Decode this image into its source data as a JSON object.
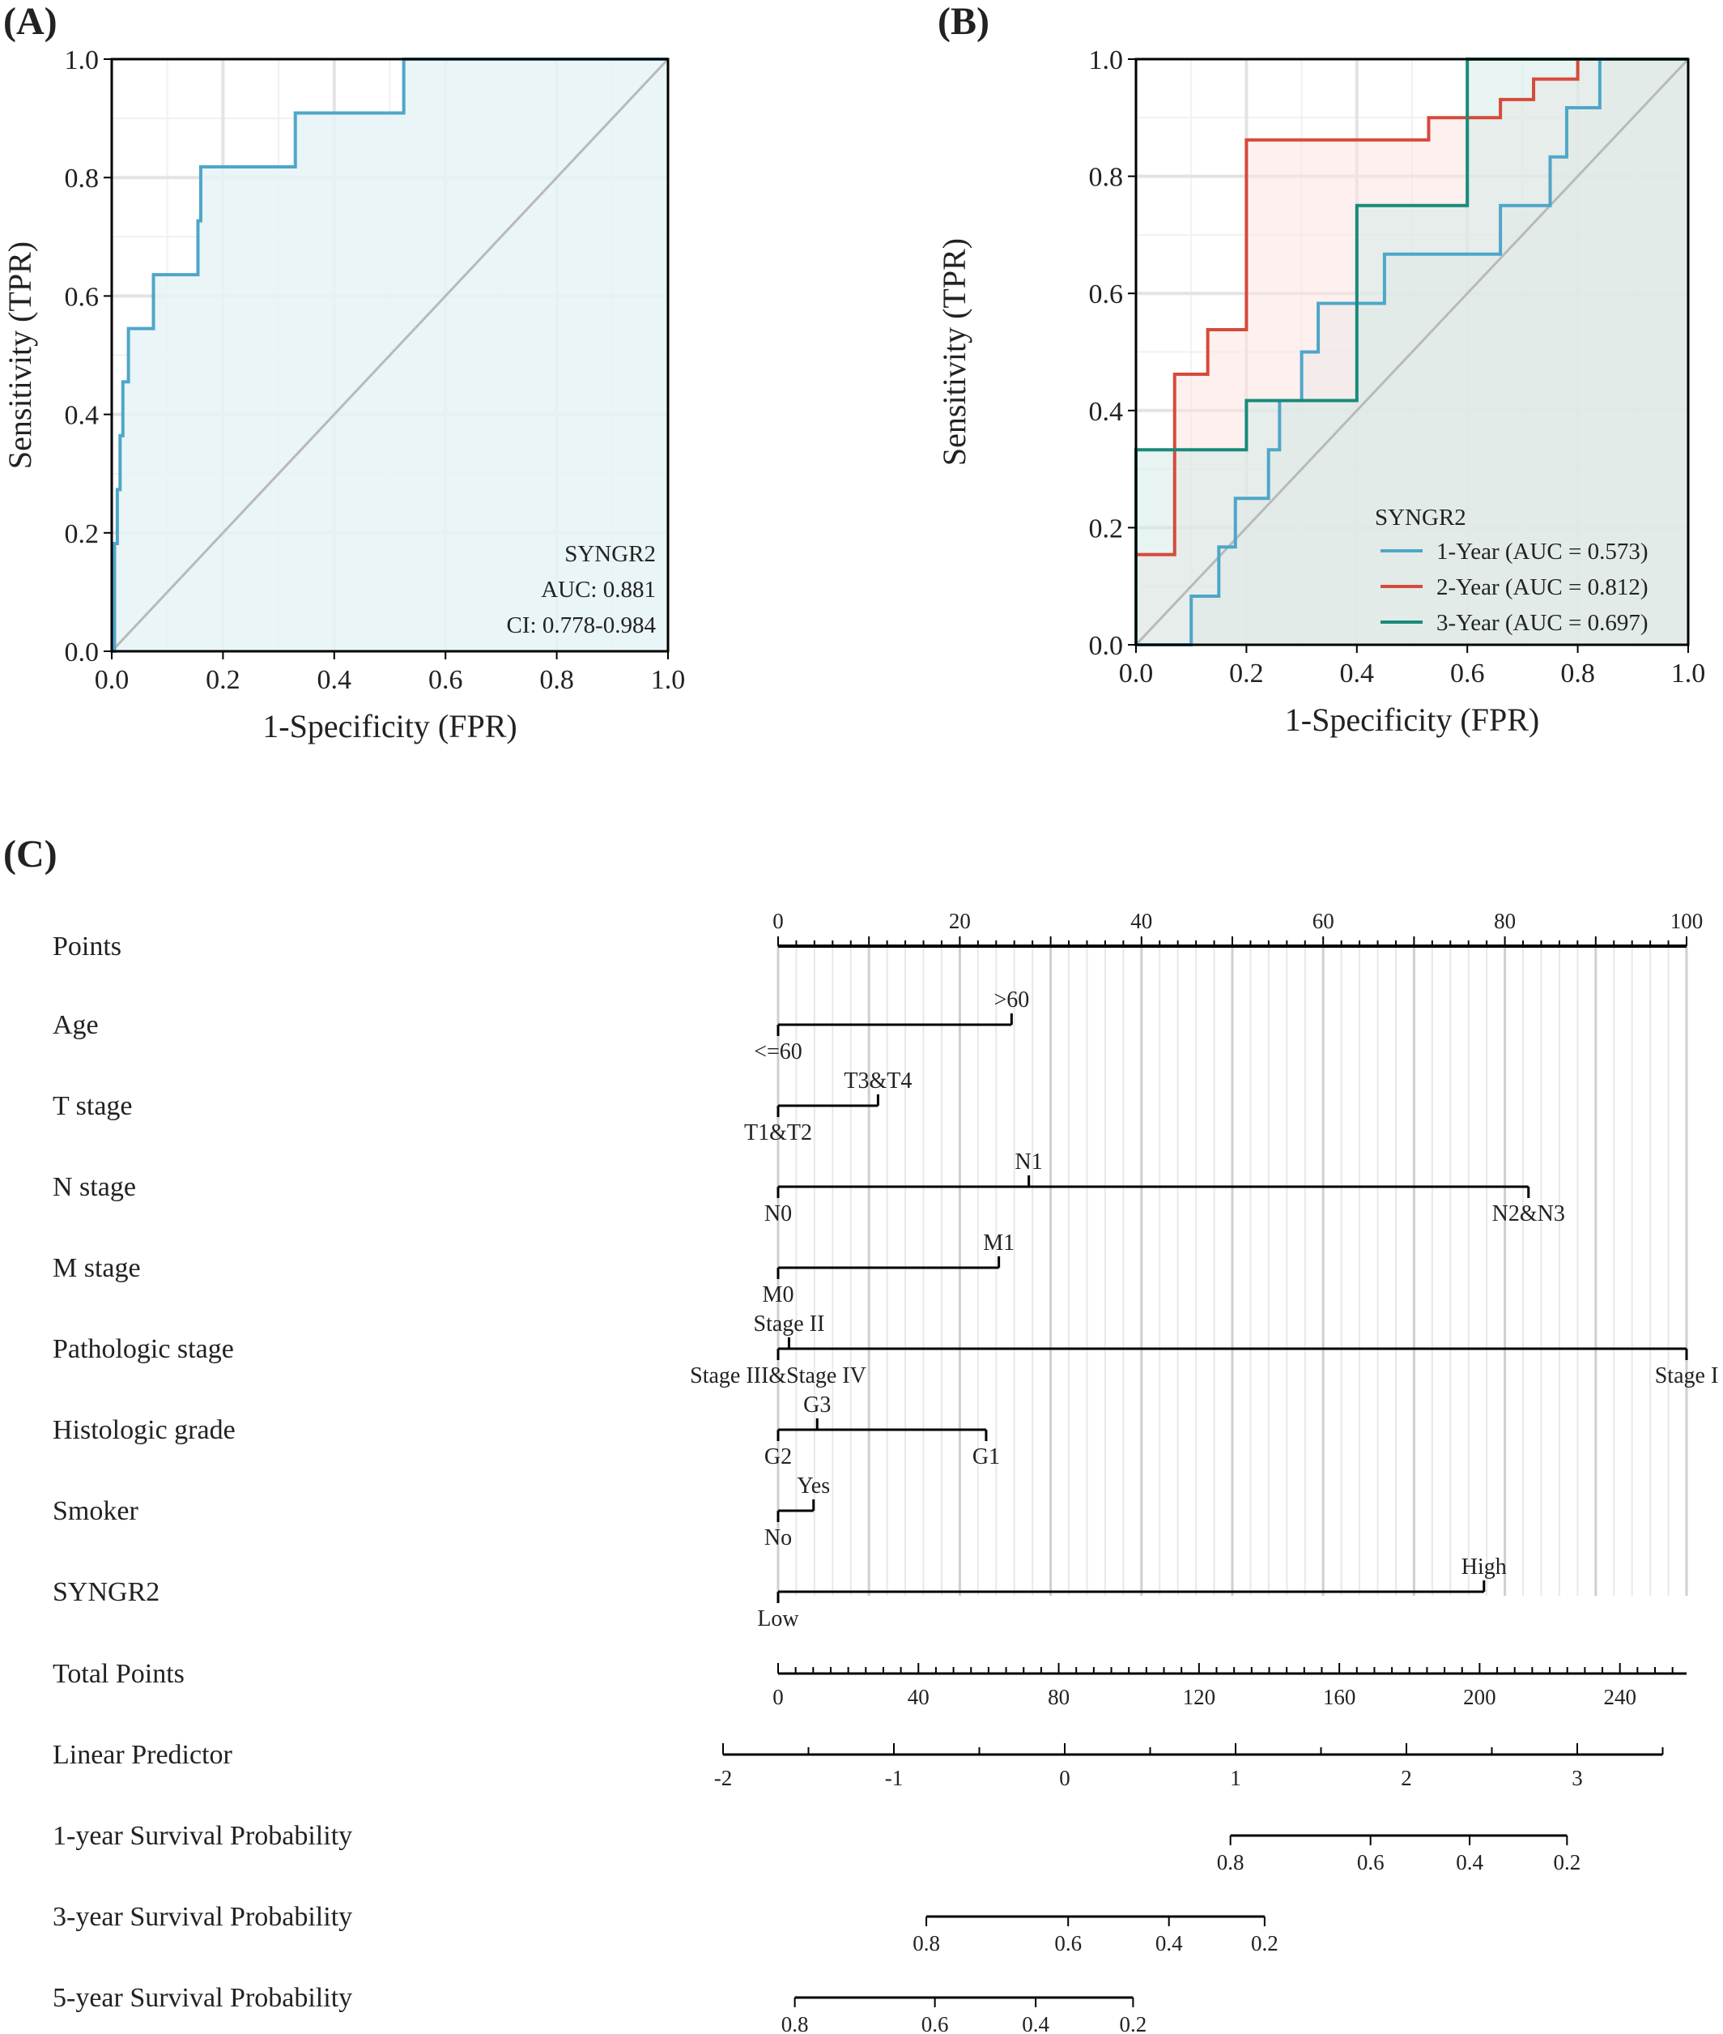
{
  "chart_data": [
    {
      "panel": "(A)",
      "type": "line",
      "xlabel": "1-Specificity (FPR)",
      "ylabel": "Sensitivity (TPR)",
      "xlim": [
        0,
        1
      ],
      "ylim": [
        0,
        1
      ],
      "ticks": [
        "0.0",
        "0.2",
        "0.4",
        "0.6",
        "0.8",
        "1.0"
      ],
      "grid": true,
      "diagonal": true,
      "series": [
        {
          "color": "#4fa6c8",
          "fill": "#e6f3f6",
          "x": [
            0,
            0.005,
            0.005,
            0.01,
            0.01,
            0.015,
            0.015,
            0.02,
            0.02,
            0.03,
            0.03,
            0.04,
            0.04,
            0.075,
            0.075,
            0.155,
            0.155,
            0.16,
            0.16,
            0.33,
            0.33,
            0.525,
            0.525,
            1.0
          ],
          "y": [
            0,
            0,
            0.182,
            0.182,
            0.273,
            0.273,
            0.364,
            0.364,
            0.455,
            0.455,
            0.545,
            0.545,
            0.545,
            0.545,
            0.636,
            0.636,
            0.727,
            0.727,
            0.818,
            0.818,
            0.909,
            0.909,
            1.0,
            1.0
          ]
        }
      ],
      "annotation": [
        "SYNGR2",
        "AUC: 0.881",
        "CI: 0.778-0.984"
      ]
    },
    {
      "panel": "(B)",
      "type": "line",
      "xlabel": "1-Specificity (FPR)",
      "ylabel": "Sensitivity (TPR)",
      "xlim": [
        0,
        1
      ],
      "ylim": [
        0,
        1
      ],
      "ticks": [
        "0.0",
        "0.2",
        "0.4",
        "0.6",
        "0.8",
        "1.0"
      ],
      "grid": true,
      "diagonal": true,
      "legend_title": "SYNGR2",
      "legend_position": "bottom-right",
      "series": [
        {
          "name": "1-Year (AUC = 0.573)",
          "color": "#4fa6c8",
          "fill": "#d7ecf1",
          "x": [
            0,
            0.1,
            0.1,
            0.15,
            0.15,
            0.18,
            0.18,
            0.24,
            0.24,
            0.26,
            0.26,
            0.3,
            0.3,
            0.33,
            0.33,
            0.45,
            0.45,
            0.66,
            0.66,
            0.72,
            0.72,
            0.75,
            0.75,
            0.78,
            0.78,
            0.8,
            0.8,
            0.84,
            0.84,
            1.0
          ],
          "y": [
            0,
            0,
            0.083,
            0.083,
            0.167,
            0.167,
            0.25,
            0.25,
            0.333,
            0.333,
            0.417,
            0.417,
            0.5,
            0.5,
            0.583,
            0.583,
            0.667,
            0.667,
            0.75,
            0.75,
            0.75,
            0.75,
            0.833,
            0.833,
            0.917,
            0.917,
            0.917,
            0.917,
            1.0,
            1.0
          ]
        },
        {
          "name": "2-Year (AUC = 0.812)",
          "color": "#d64a3a",
          "fill": "#fbe4e1",
          "x": [
            0,
            0.07,
            0.07,
            0.13,
            0.13,
            0.2,
            0.2,
            0.53,
            0.53,
            0.66,
            0.66,
            0.72,
            0.72,
            0.8,
            0.8,
            1.0
          ],
          "y": [
            0.154,
            0.154,
            0.462,
            0.462,
            0.538,
            0.538,
            0.862,
            0.862,
            0.9,
            0.9,
            0.931,
            0.931,
            0.966,
            0.966,
            1.0,
            1.0
          ],
          "extra_x": [
            0.13,
            0.2
          ],
          "extra_y": [
            0.554,
            0.554
          ]
        },
        {
          "name": "3-Year (AUC = 0.697)",
          "color": "#1a8a7a",
          "fill": "#d5ebe5",
          "x": [
            0,
            0,
            0.2,
            0.2,
            0.4,
            0.4,
            0.6,
            0.6,
            1.0
          ],
          "y": [
            0,
            0.333,
            0.333,
            0.417,
            0.417,
            0.75,
            0.75,
            1.0,
            1.0
          ]
        }
      ]
    },
    {
      "panel": "(C)",
      "type": "nomogram",
      "rows": [
        {
          "label": "Points",
          "kind": "scale",
          "ticks": [
            "0",
            "20",
            "40",
            "60",
            "80",
            "100"
          ]
        },
        {
          "label": "Age",
          "levels": [
            {
              "text": "<=60",
              "points": 0,
              "pos": "below"
            },
            {
              "text": ">60",
              "points": 25.7,
              "pos": "above"
            }
          ]
        },
        {
          "label": "T stage",
          "levels": [
            {
              "text": "T1&T2",
              "points": 0,
              "pos": "below"
            },
            {
              "text": "T3&T4",
              "points": 11,
              "pos": "above"
            }
          ]
        },
        {
          "label": "N stage",
          "levels": [
            {
              "text": "N0",
              "points": 0,
              "pos": "below"
            },
            {
              "text": "N1",
              "points": 27.6,
              "pos": "above"
            },
            {
              "text": "N2&N3",
              "points": 82.6,
              "pos": "below"
            }
          ]
        },
        {
          "label": "M stage",
          "levels": [
            {
              "text": "M0",
              "points": 0,
              "pos": "below"
            },
            {
              "text": "M1",
              "points": 24.3,
              "pos": "above"
            }
          ]
        },
        {
          "label": "Pathologic stage",
          "levels": [
            {
              "text": "Stage III&Stage IV",
              "points": 0,
              "pos": "below"
            },
            {
              "text": "Stage II",
              "points": 1.2,
              "pos": "above"
            },
            {
              "text": "Stage I",
              "points": 100,
              "pos": "below"
            }
          ]
        },
        {
          "label": "Histologic grade",
          "levels": [
            {
              "text": "G2",
              "points": 0,
              "pos": "below"
            },
            {
              "text": "G3",
              "points": 4.3,
              "pos": "above"
            },
            {
              "text": "G1",
              "points": 22.9,
              "pos": "below"
            }
          ]
        },
        {
          "label": "Smoker",
          "levels": [
            {
              "text": "No",
              "points": 0,
              "pos": "below"
            },
            {
              "text": "Yes",
              "points": 3.9,
              "pos": "above"
            }
          ]
        },
        {
          "label": "SYNGR2",
          "levels": [
            {
              "text": "Low",
              "points": 0,
              "pos": "below"
            },
            {
              "text": "High",
              "points": 77.7,
              "pos": "above"
            }
          ]
        },
        {
          "label": "Total Points",
          "kind": "total",
          "ticks": [
            "0",
            "40",
            "80",
            "120",
            "160",
            "200",
            "240"
          ],
          "max": 259
        },
        {
          "label": "Linear Predictor",
          "kind": "lp",
          "ticks": [
            "-2",
            "-1",
            "0",
            "1",
            "2",
            "3"
          ],
          "range": [
            -2,
            3.5
          ]
        },
        {
          "label": "1-year Survival Probability",
          "kind": "prob",
          "ticks": [
            "0.8",
            "0.6",
            "0.4",
            "0.2"
          ],
          "tick_lp": [
            0.97,
            1.79,
            2.37,
            2.94
          ]
        },
        {
          "label": "3-year Survival Probability",
          "kind": "prob",
          "ticks": [
            "0.8",
            "0.6",
            "0.4",
            "0.2"
          ],
          "tick_lp": [
            -0.81,
            0.02,
            0.61,
            1.17
          ]
        },
        {
          "label": "5-year Survival Probability",
          "kind": "prob",
          "ticks": [
            "0.8",
            "0.6",
            "0.4",
            "0.2"
          ],
          "tick_lp": [
            -1.58,
            -0.76,
            -0.17,
            0.4
          ]
        }
      ]
    }
  ]
}
